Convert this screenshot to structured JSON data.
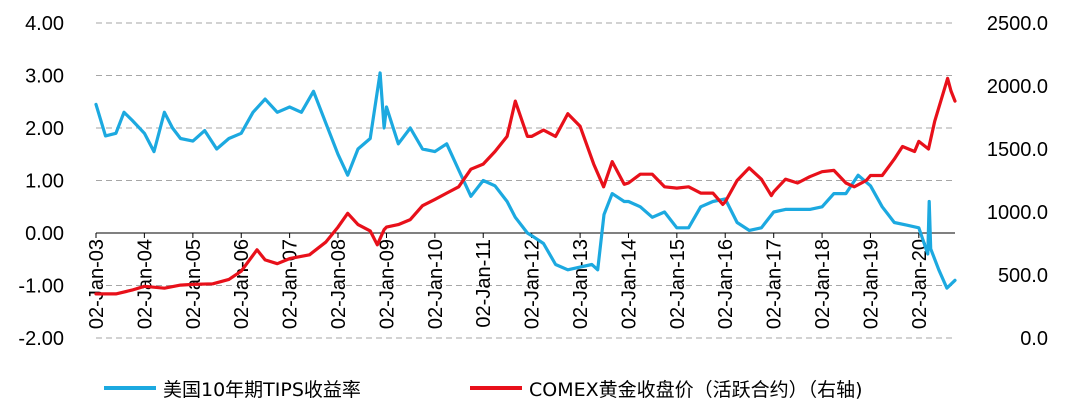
{
  "chart_data": {
    "type": "line",
    "title": "",
    "grid": true,
    "legend_placement": "bottom",
    "x_ticks": [
      "02-Jan-03",
      "02-Jan-04",
      "02-Jan-05",
      "02-Jan-06",
      "02-Jan-07",
      "02-Jan-08",
      "02-Jan-09",
      "02-Jan-10",
      "02-Jan-11",
      "02-Jan-12",
      "02-Jan-13",
      "02-Jan-14",
      "02-Jan-15",
      "02-Jan-16",
      "02-Jan-17",
      "02-Jan-18",
      "02-Jan-19",
      "02-Jan-20"
    ],
    "x_range": [
      "2003-01-02",
      "2020-10-01"
    ],
    "y_left": {
      "ylim": [
        -2.0,
        4.0
      ],
      "ticks": [
        "4.00",
        "3.00",
        "2.00",
        "1.00",
        "0.00",
        "-1.00",
        "-2.00"
      ]
    },
    "y_right": {
      "ylim": [
        0.0,
        2500.0
      ],
      "ticks": [
        "2500.0",
        "2000.0",
        "1500.0",
        "1000.0",
        "500.0",
        "0.0"
      ]
    },
    "series": [
      {
        "name": "美国10年期TIPS收益率",
        "axis": "left",
        "color": "#1CA9E0",
        "points": [
          [
            "2003-01-02",
            2.45
          ],
          [
            "2003-03-15",
            1.85
          ],
          [
            "2003-06-01",
            1.9
          ],
          [
            "2003-08-01",
            2.3
          ],
          [
            "2003-10-01",
            2.15
          ],
          [
            "2004-01-02",
            1.9
          ],
          [
            "2004-03-15",
            1.55
          ],
          [
            "2004-06-01",
            2.3
          ],
          [
            "2004-08-01",
            2.0
          ],
          [
            "2004-10-01",
            1.8
          ],
          [
            "2005-01-02",
            1.75
          ],
          [
            "2005-04-01",
            1.95
          ],
          [
            "2005-07-01",
            1.6
          ],
          [
            "2005-10-01",
            1.8
          ],
          [
            "2006-01-02",
            1.9
          ],
          [
            "2006-04-01",
            2.3
          ],
          [
            "2006-07-01",
            2.55
          ],
          [
            "2006-10-01",
            2.3
          ],
          [
            "2007-01-02",
            2.4
          ],
          [
            "2007-04-01",
            2.3
          ],
          [
            "2007-07-01",
            2.7
          ],
          [
            "2007-10-01",
            2.1
          ],
          [
            "2008-01-02",
            1.5
          ],
          [
            "2008-03-15",
            1.1
          ],
          [
            "2008-06-01",
            1.6
          ],
          [
            "2008-09-01",
            1.8
          ],
          [
            "2008-11-15",
            3.05
          ],
          [
            "2008-12-15",
            2.0
          ],
          [
            "2009-01-02",
            2.4
          ],
          [
            "2009-04-01",
            1.7
          ],
          [
            "2009-07-01",
            2.0
          ],
          [
            "2009-10-01",
            1.6
          ],
          [
            "2010-01-02",
            1.55
          ],
          [
            "2010-04-01",
            1.7
          ],
          [
            "2010-07-01",
            1.2
          ],
          [
            "2010-10-01",
            0.7
          ],
          [
            "2011-01-02",
            1.0
          ],
          [
            "2011-04-01",
            0.9
          ],
          [
            "2011-07-01",
            0.6
          ],
          [
            "2011-09-01",
            0.3
          ],
          [
            "2011-12-01",
            0.0
          ],
          [
            "2012-01-02",
            -0.05
          ],
          [
            "2012-04-01",
            -0.2
          ],
          [
            "2012-07-01",
            -0.6
          ],
          [
            "2012-10-01",
            -0.7
          ],
          [
            "2013-01-02",
            -0.65
          ],
          [
            "2013-04-01",
            -0.6
          ],
          [
            "2013-05-15",
            -0.7
          ],
          [
            "2013-07-01",
            0.35
          ],
          [
            "2013-09-01",
            0.75
          ],
          [
            "2013-12-01",
            0.6
          ],
          [
            "2014-01-02",
            0.6
          ],
          [
            "2014-04-01",
            0.5
          ],
          [
            "2014-07-01",
            0.3
          ],
          [
            "2014-10-01",
            0.4
          ],
          [
            "2015-01-02",
            0.1
          ],
          [
            "2015-04-01",
            0.1
          ],
          [
            "2015-07-01",
            0.5
          ],
          [
            "2015-10-01",
            0.6
          ],
          [
            "2016-01-02",
            0.65
          ],
          [
            "2016-04-01",
            0.2
          ],
          [
            "2016-07-01",
            0.05
          ],
          [
            "2016-10-01",
            0.1
          ],
          [
            "2017-01-02",
            0.4
          ],
          [
            "2017-04-01",
            0.45
          ],
          [
            "2017-07-01",
            0.45
          ],
          [
            "2017-10-01",
            0.45
          ],
          [
            "2018-01-02",
            0.5
          ],
          [
            "2018-04-01",
            0.75
          ],
          [
            "2018-07-01",
            0.75
          ],
          [
            "2018-10-01",
            1.1
          ],
          [
            "2019-01-02",
            0.9
          ],
          [
            "2019-04-01",
            0.5
          ],
          [
            "2019-07-01",
            0.2
          ],
          [
            "2019-10-01",
            0.15
          ],
          [
            "2020-01-02",
            0.1
          ],
          [
            "2020-03-10",
            -0.4
          ],
          [
            "2020-03-20",
            0.6
          ],
          [
            "2020-04-01",
            -0.3
          ],
          [
            "2020-06-01",
            -0.7
          ],
          [
            "2020-08-01",
            -1.05
          ],
          [
            "2020-10-01",
            -0.9
          ]
        ]
      },
      {
        "name": "COMEX黄金收盘价（活跃合约）（右轴)",
        "axis": "right",
        "color": "#E8101A",
        "points": [
          [
            "2003-01-02",
            350
          ],
          [
            "2003-06-01",
            350
          ],
          [
            "2003-10-01",
            380
          ],
          [
            "2004-01-02",
            410
          ],
          [
            "2004-06-01",
            395
          ],
          [
            "2004-10-01",
            420
          ],
          [
            "2005-01-02",
            425
          ],
          [
            "2005-06-01",
            430
          ],
          [
            "2005-10-01",
            465
          ],
          [
            "2006-01-02",
            530
          ],
          [
            "2006-05-01",
            700
          ],
          [
            "2006-07-01",
            620
          ],
          [
            "2006-10-01",
            590
          ],
          [
            "2007-01-02",
            630
          ],
          [
            "2007-06-01",
            660
          ],
          [
            "2007-10-01",
            760
          ],
          [
            "2008-01-02",
            880
          ],
          [
            "2008-03-15",
            990
          ],
          [
            "2008-06-01",
            900
          ],
          [
            "2008-09-01",
            850
          ],
          [
            "2008-10-25",
            740
          ],
          [
            "2008-12-15",
            860
          ],
          [
            "2009-01-02",
            880
          ],
          [
            "2009-04-01",
            900
          ],
          [
            "2009-07-01",
            940
          ],
          [
            "2009-10-01",
            1050
          ],
          [
            "2010-01-02",
            1100
          ],
          [
            "2010-04-01",
            1150
          ],
          [
            "2010-07-01",
            1200
          ],
          [
            "2010-10-01",
            1340
          ],
          [
            "2011-01-02",
            1380
          ],
          [
            "2011-04-01",
            1480
          ],
          [
            "2011-07-01",
            1600
          ],
          [
            "2011-09-01",
            1880
          ],
          [
            "2011-12-01",
            1600
          ],
          [
            "2012-01-02",
            1600
          ],
          [
            "2012-04-01",
            1650
          ],
          [
            "2012-07-01",
            1600
          ],
          [
            "2012-10-01",
            1780
          ],
          [
            "2013-01-02",
            1680
          ],
          [
            "2013-04-15",
            1380
          ],
          [
            "2013-06-28",
            1200
          ],
          [
            "2013-09-01",
            1400
          ],
          [
            "2013-12-01",
            1220
          ],
          [
            "2014-01-02",
            1230
          ],
          [
            "2014-04-01",
            1300
          ],
          [
            "2014-07-01",
            1300
          ],
          [
            "2014-10-01",
            1200
          ],
          [
            "2015-01-02",
            1190
          ],
          [
            "2015-04-01",
            1200
          ],
          [
            "2015-07-01",
            1150
          ],
          [
            "2015-10-01",
            1150
          ],
          [
            "2015-12-15",
            1060
          ],
          [
            "2016-01-02",
            1080
          ],
          [
            "2016-04-01",
            1250
          ],
          [
            "2016-07-01",
            1350
          ],
          [
            "2016-10-01",
            1260
          ],
          [
            "2016-12-15",
            1130
          ],
          [
            "2017-01-02",
            1160
          ],
          [
            "2017-04-01",
            1260
          ],
          [
            "2017-07-01",
            1230
          ],
          [
            "2017-10-01",
            1280
          ],
          [
            "2018-01-02",
            1320
          ],
          [
            "2018-04-01",
            1330
          ],
          [
            "2018-07-01",
            1230
          ],
          [
            "2018-09-01",
            1200
          ],
          [
            "2018-12-01",
            1250
          ],
          [
            "2019-01-02",
            1290
          ],
          [
            "2019-04-01",
            1290
          ],
          [
            "2019-07-01",
            1420
          ],
          [
            "2019-09-01",
            1520
          ],
          [
            "2019-12-01",
            1480
          ],
          [
            "2020-01-02",
            1560
          ],
          [
            "2020-03-15",
            1500
          ],
          [
            "2020-05-01",
            1720
          ],
          [
            "2020-08-06",
            2060
          ],
          [
            "2020-09-01",
            1960
          ],
          [
            "2020-10-01",
            1880
          ]
        ]
      }
    ]
  }
}
